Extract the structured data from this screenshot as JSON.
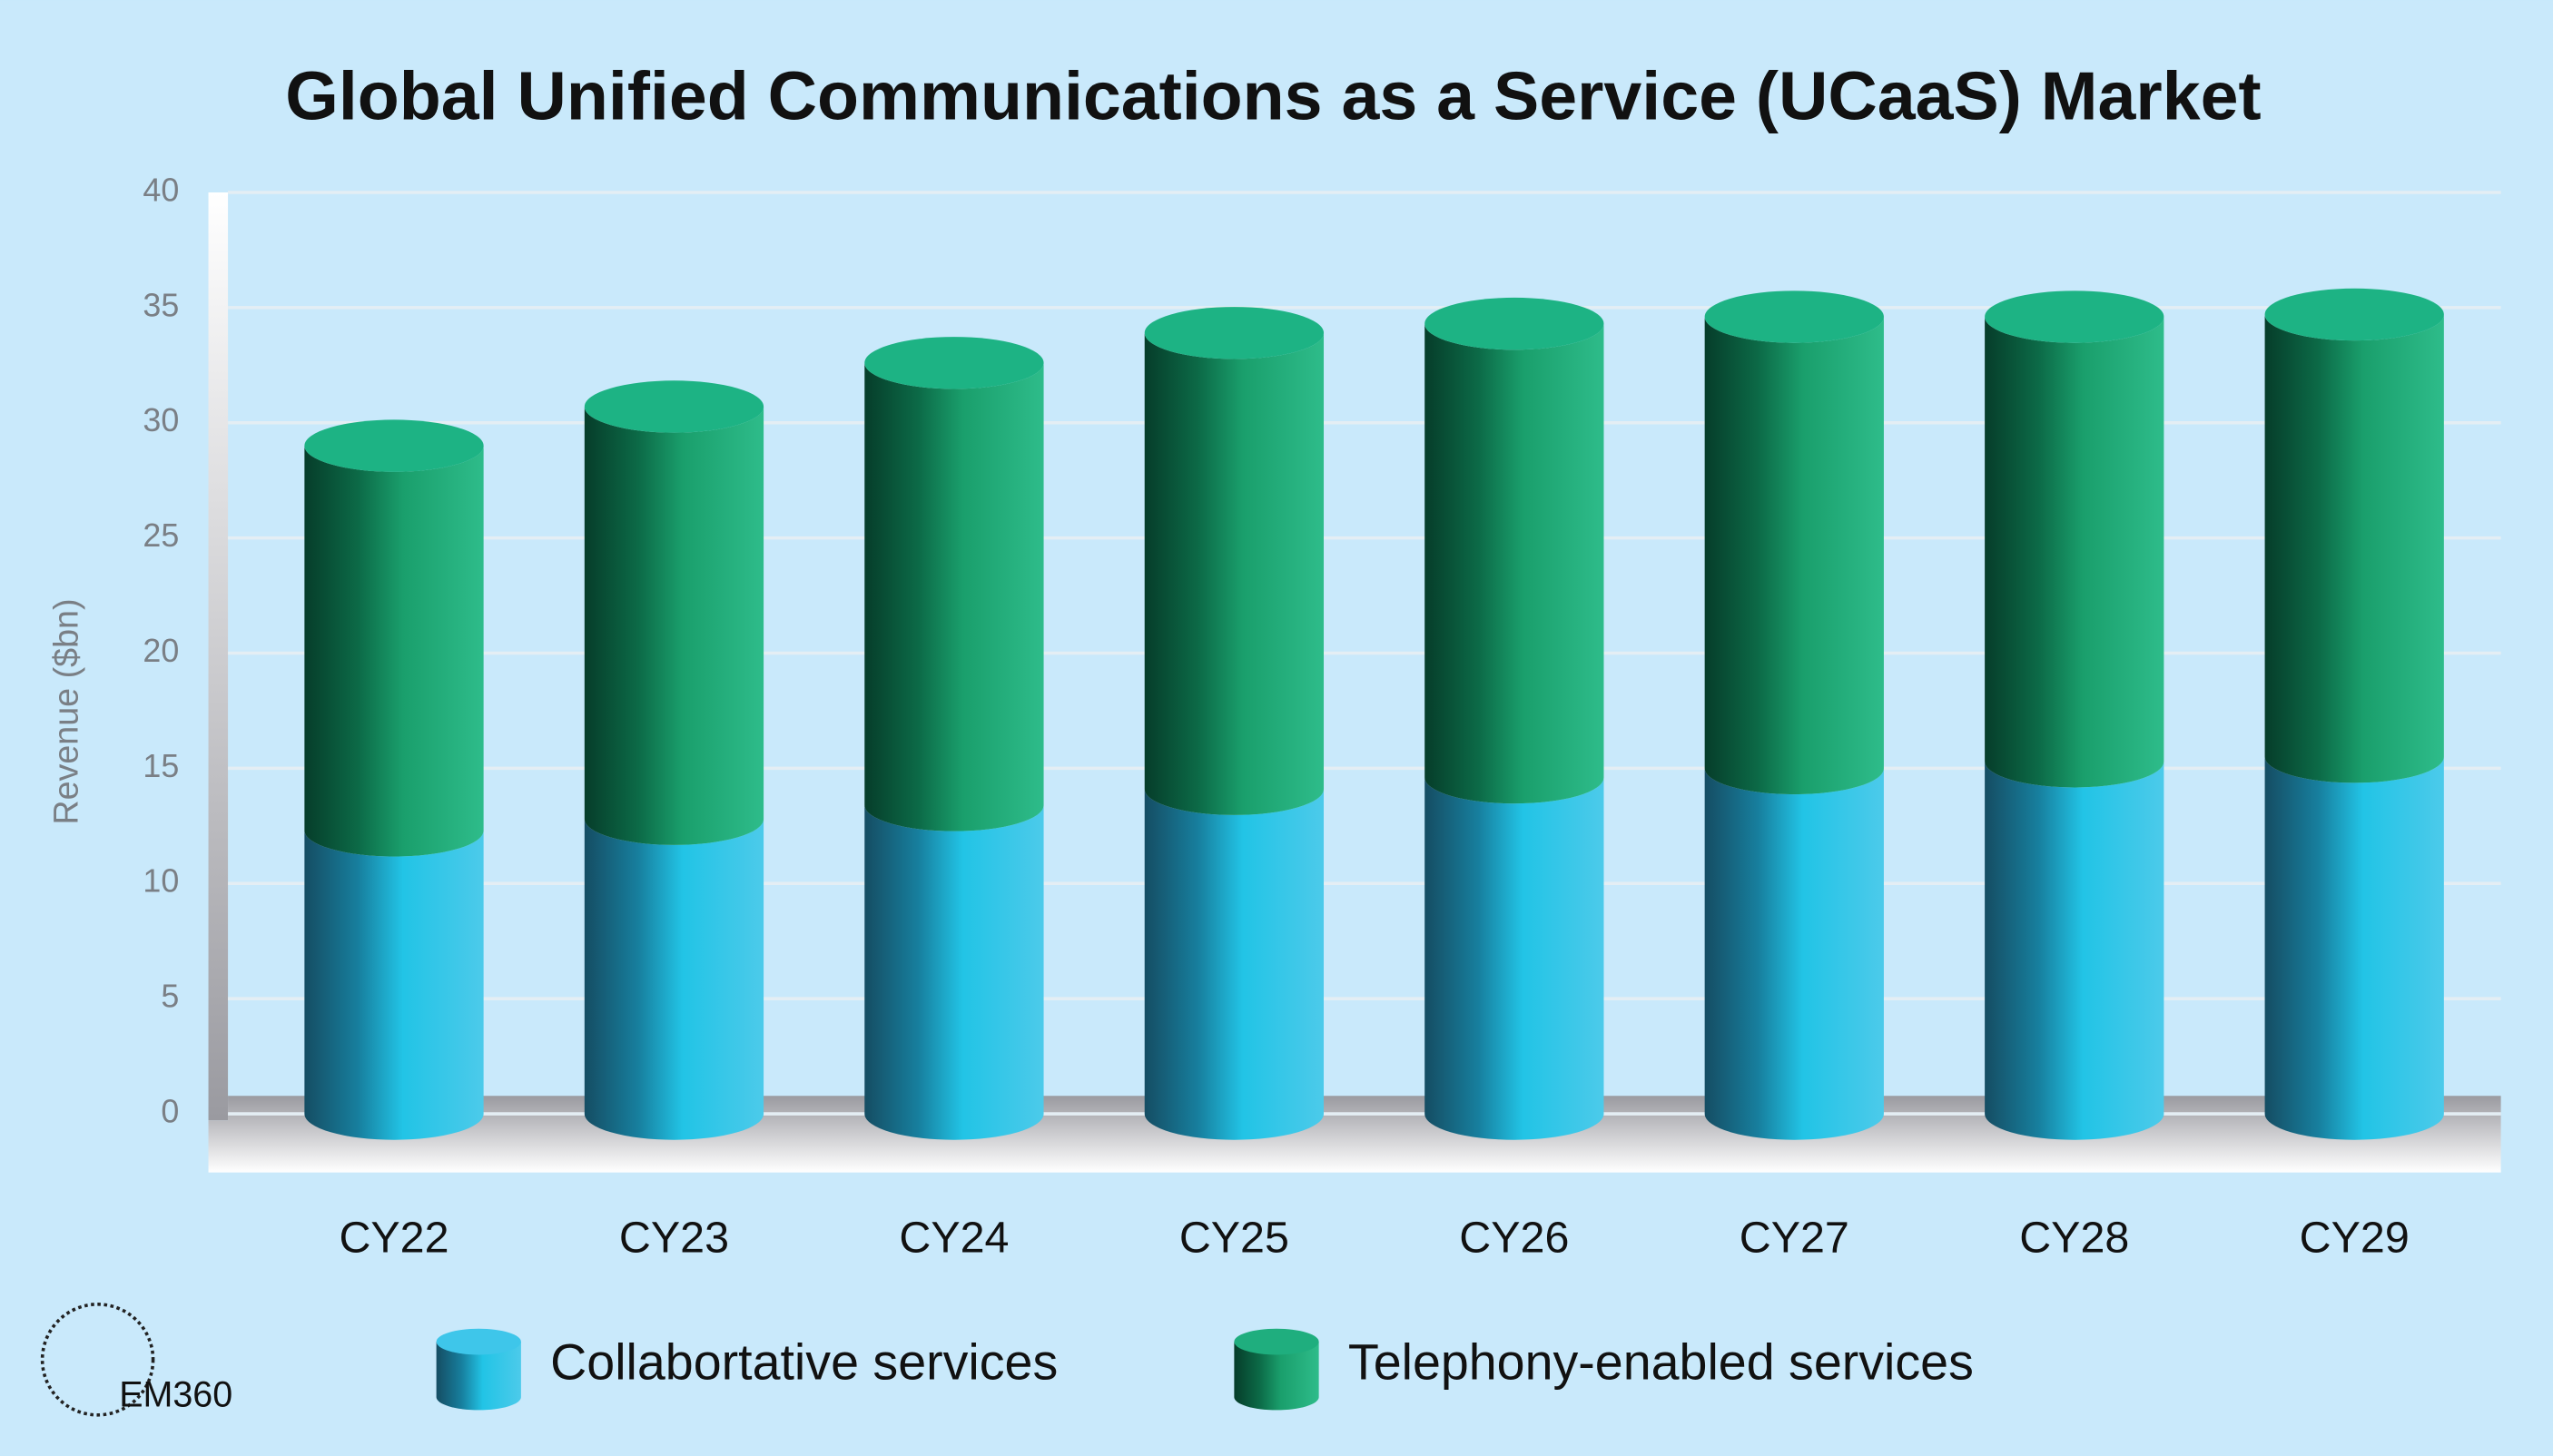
{
  "chart_data": {
    "type": "bar3d-stacked",
    "title": "Global Unified Communications as a Service (UCaaS) Market",
    "y_label": "Revenue ($bn)",
    "categories": [
      "CY22",
      "CY23",
      "CY24",
      "CY25",
      "CY26",
      "CY27",
      "CY28",
      "CY29"
    ],
    "series": [
      {
        "name": "Collabortative services",
        "color": "#3ec6ea",
        "values": [
          12.3,
          12.8,
          13.4,
          14.1,
          14.6,
          15.0,
          15.3,
          15.5
        ]
      },
      {
        "name": "Telephony-enabled services",
        "color": "#1fae7e",
        "values": [
          16.7,
          17.9,
          19.2,
          19.8,
          19.7,
          19.6,
          19.3,
          19.2
        ]
      }
    ],
    "ylim": [
      0,
      40
    ],
    "yticks": [
      0,
      5,
      10,
      15,
      20,
      25,
      30,
      35,
      40
    ],
    "grid": true,
    "logo": "EM360"
  }
}
